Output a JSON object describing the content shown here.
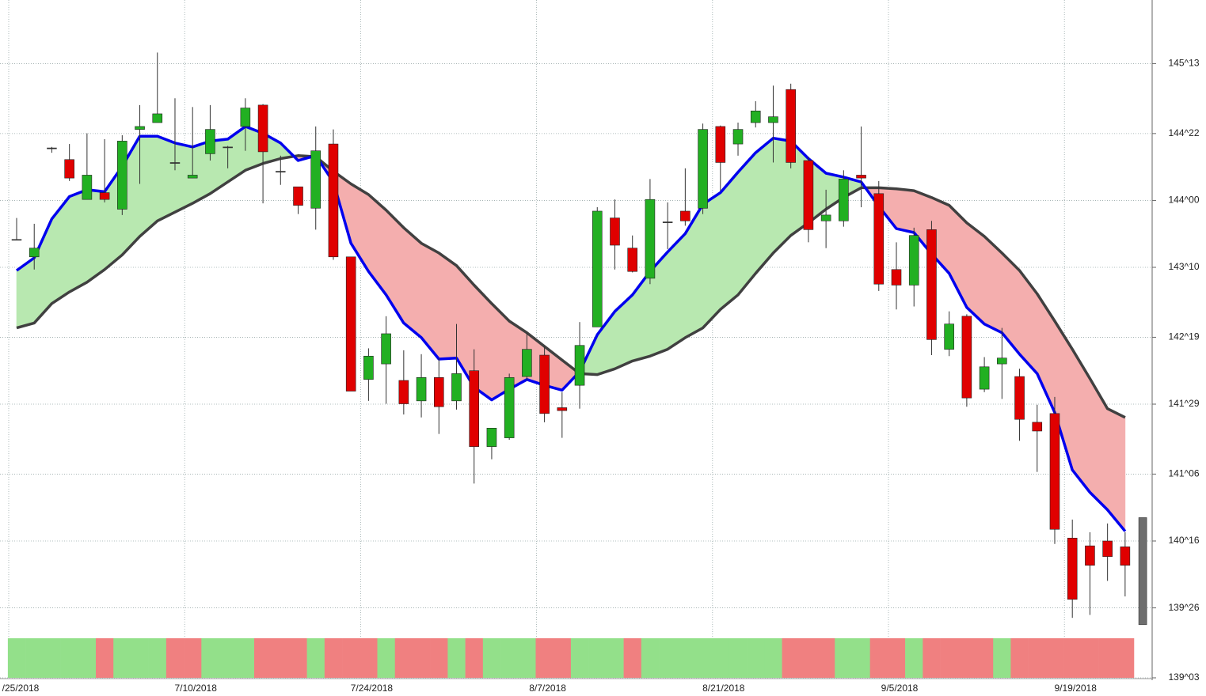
{
  "chart_data": {
    "type": "candlestick",
    "categories": [
      "/25/2018",
      null,
      null,
      null,
      null,
      null,
      null,
      null,
      null,
      null,
      "7/10/2018",
      null,
      null,
      null,
      null,
      null,
      null,
      null,
      null,
      null,
      "7/24/2018",
      null,
      null,
      null,
      null,
      null,
      null,
      null,
      null,
      null,
      "8/7/2018",
      null,
      null,
      null,
      null,
      null,
      null,
      null,
      null,
      null,
      "8/21/2018",
      null,
      null,
      null,
      null,
      null,
      null,
      null,
      null,
      null,
      "9/5/2018",
      null,
      null,
      null,
      null,
      null,
      null,
      null,
      null,
      null,
      "9/19/2018",
      null,
      null,
      null
    ],
    "open": [
      143.6,
      143.42,
      144.54,
      144.42,
      144.01,
      144.08,
      143.91,
      144.73,
      144.8,
      144.39,
      144.23,
      144.48,
      144.55,
      144.76,
      144.98,
      144.3,
      144.14,
      143.92,
      144.58,
      143.42,
      142.16,
      142.32,
      142.15,
      141.94,
      142.18,
      141.94,
      142.25,
      141.47,
      141.56,
      142.19,
      142.41,
      141.87,
      142.1,
      142.7,
      143.82,
      143.51,
      143.2,
      143.78,
      143.89,
      143.92,
      144.76,
      144.58,
      144.8,
      144.8,
      145.14,
      144.41,
      143.79,
      143.79,
      144.26,
      144.07,
      143.29,
      143.13,
      143.7,
      142.47,
      142.81,
      142.06,
      142.32,
      142.19,
      141.72,
      141.81,
      140.53,
      140.45,
      140.5,
      140.44
    ],
    "high": [
      143.82,
      143.76,
      144.55,
      144.58,
      144.69,
      144.63,
      144.67,
      144.98,
      145.52,
      145.05,
      144.96,
      144.98,
      144.56,
      145.05,
      144.99,
      144.46,
      144.14,
      144.76,
      144.73,
      143.42,
      142.48,
      142.81,
      142.46,
      142.42,
      142.38,
      142.73,
      142.47,
      141.66,
      142.22,
      142.64,
      142.5,
      142.03,
      142.75,
      143.93,
      144.01,
      143.64,
      144.22,
      143.98,
      144.33,
      144.79,
      144.77,
      144.8,
      145.02,
      145.18,
      145.2,
      144.45,
      144.11,
      144.31,
      144.76,
      144.2,
      143.57,
      143.72,
      143.79,
      142.86,
      142.83,
      142.39,
      142.69,
      142.27,
      141.9,
      141.98,
      140.72,
      140.59,
      140.68,
      140.59
    ],
    "low": [
      143.6,
      143.29,
      144.49,
      144.2,
      144.01,
      143.98,
      143.85,
      144.17,
      144.8,
      144.31,
      144.23,
      144.41,
      144.33,
      144.51,
      143.97,
      144.16,
      143.86,
      143.7,
      143.39,
      142.04,
      141.94,
      141.91,
      141.8,
      141.77,
      141.6,
      141.85,
      141.09,
      141.34,
      141.54,
      142.15,
      141.72,
      141.56,
      141.86,
      142.7,
      143.29,
      143.26,
      143.14,
      143.5,
      143.74,
      143.86,
      144.1,
      144.46,
      144.75,
      144.39,
      144.33,
      143.57,
      143.51,
      143.73,
      143.93,
      143.07,
      142.88,
      142.91,
      142.41,
      142.4,
      141.88,
      142.03,
      141.96,
      141.53,
      141.21,
      140.47,
      139.71,
      139.74,
      140.09,
      139.93
    ],
    "close": [
      143.6,
      143.51,
      144.54,
      144.23,
      144.26,
      144.01,
      144.61,
      144.76,
      144.89,
      144.39,
      144.26,
      144.73,
      144.55,
      144.95,
      144.5,
      144.3,
      143.95,
      144.51,
      143.42,
      142.04,
      142.4,
      142.63,
      141.91,
      142.18,
      141.88,
      142.22,
      141.47,
      141.66,
      142.18,
      142.47,
      141.81,
      141.84,
      142.51,
      143.89,
      143.54,
      143.27,
      144.01,
      143.78,
      143.79,
      144.73,
      144.39,
      144.73,
      144.92,
      144.86,
      144.39,
      143.7,
      143.85,
      144.22,
      144.23,
      143.14,
      143.13,
      143.64,
      142.57,
      142.73,
      141.97,
      142.29,
      142.38,
      141.75,
      141.63,
      140.62,
      139.9,
      140.25,
      140.34,
      140.25
    ],
    "up_color": "#22b022",
    "down_color": "#e00000",
    "doji_color": "#333333",
    "lines": [
      {
        "color": "#0000ee",
        "values": [
          143.28,
          143.41,
          143.81,
          144.04,
          144.11,
          144.09,
          144.35,
          144.66,
          144.66,
          144.59,
          144.55,
          144.61,
          144.63,
          144.76,
          144.69,
          144.59,
          144.41,
          144.46,
          144.19,
          143.56,
          143.27,
          143.03,
          142.74,
          142.59,
          142.37,
          142.38,
          142.08,
          141.95,
          142.06,
          142.16,
          142.1,
          142.05,
          142.24,
          142.62,
          142.86,
          143.03,
          143.27,
          143.47,
          143.66,
          143.96,
          144.08,
          144.29,
          144.49,
          144.64,
          144.61,
          144.43,
          144.28,
          144.24,
          144.19,
          143.94,
          143.71,
          143.67,
          143.45,
          143.25,
          142.9,
          142.73,
          142.64,
          142.42,
          142.22,
          141.82,
          141.23,
          141.0,
          140.82,
          140.6
        ]
      },
      {
        "color": "#404040",
        "values": [
          142.69,
          142.74,
          142.94,
          143.06,
          143.16,
          143.29,
          143.44,
          143.63,
          143.79,
          143.88,
          143.97,
          144.07,
          144.19,
          144.31,
          144.38,
          144.43,
          144.46,
          144.45,
          144.3,
          144.17,
          144.06,
          143.9,
          143.72,
          143.56,
          143.46,
          143.33,
          143.13,
          142.94,
          142.76,
          142.64,
          142.5,
          142.36,
          142.22,
          142.21,
          142.27,
          142.35,
          142.4,
          142.47,
          142.59,
          142.69,
          142.88,
          143.03,
          143.25,
          143.46,
          143.64,
          143.77,
          143.91,
          144.03,
          144.13,
          144.13,
          144.12,
          144.1,
          144.03,
          143.95,
          143.77,
          143.63,
          143.46,
          143.28,
          143.04,
          142.76,
          142.47,
          142.17,
          141.86,
          141.77
        ]
      }
    ],
    "fill_up_color": "#b8e8b0",
    "fill_down_color": "#f4aeae",
    "last_range": [
      139.64,
      140.74
    ],
    "last_range_color": "#6e6e6e",
    "signal_colors": [
      "#93e08a",
      "#93e08a",
      "#93e08a",
      "#93e08a",
      "#93e08a",
      "#f08080",
      "#93e08a",
      "#93e08a",
      "#93e08a",
      "#f08080",
      "#f08080",
      "#93e08a",
      "#93e08a",
      "#93e08a",
      "#f08080",
      "#f08080",
      "#f08080",
      "#93e08a",
      "#f08080",
      "#f08080",
      "#f08080",
      "#93e08a",
      "#f08080",
      "#f08080",
      "#f08080",
      "#93e08a",
      "#f08080",
      "#93e08a",
      "#93e08a",
      "#93e08a",
      "#f08080",
      "#f08080",
      "#93e08a",
      "#93e08a",
      "#93e08a",
      "#f08080",
      "#93e08a",
      "#93e08a",
      "#93e08a",
      "#93e08a",
      "#93e08a",
      "#93e08a",
      "#93e08a",
      "#93e08a",
      "#f08080",
      "#f08080",
      "#f08080",
      "#93e08a",
      "#93e08a",
      "#f08080",
      "#f08080",
      "#93e08a",
      "#f08080",
      "#f08080",
      "#f08080",
      "#f08080",
      "#93e08a",
      "#f08080",
      "#f08080",
      "#f08080",
      "#f08080",
      "#f08080",
      "#f08080",
      "#f08080"
    ],
    "ylim": [
      139.09375,
      146.06
    ],
    "yticks": [
      {
        "value": 145.40625,
        "label": "145^13"
      },
      {
        "value": 144.6875,
        "label": "144^22"
      },
      {
        "value": 144.0,
        "label": "144^00"
      },
      {
        "value": 143.3125,
        "label": "143^10"
      },
      {
        "value": 142.59375,
        "label": "142^19"
      },
      {
        "value": 141.90625,
        "label": "141^29"
      },
      {
        "value": 141.1875,
        "label": "141^06"
      },
      {
        "value": 140.5,
        "label": "140^16"
      },
      {
        "value": 139.8125,
        "label": "139^26"
      },
      {
        "value": 139.09375,
        "label": "139^03"
      }
    ],
    "grid": true
  }
}
